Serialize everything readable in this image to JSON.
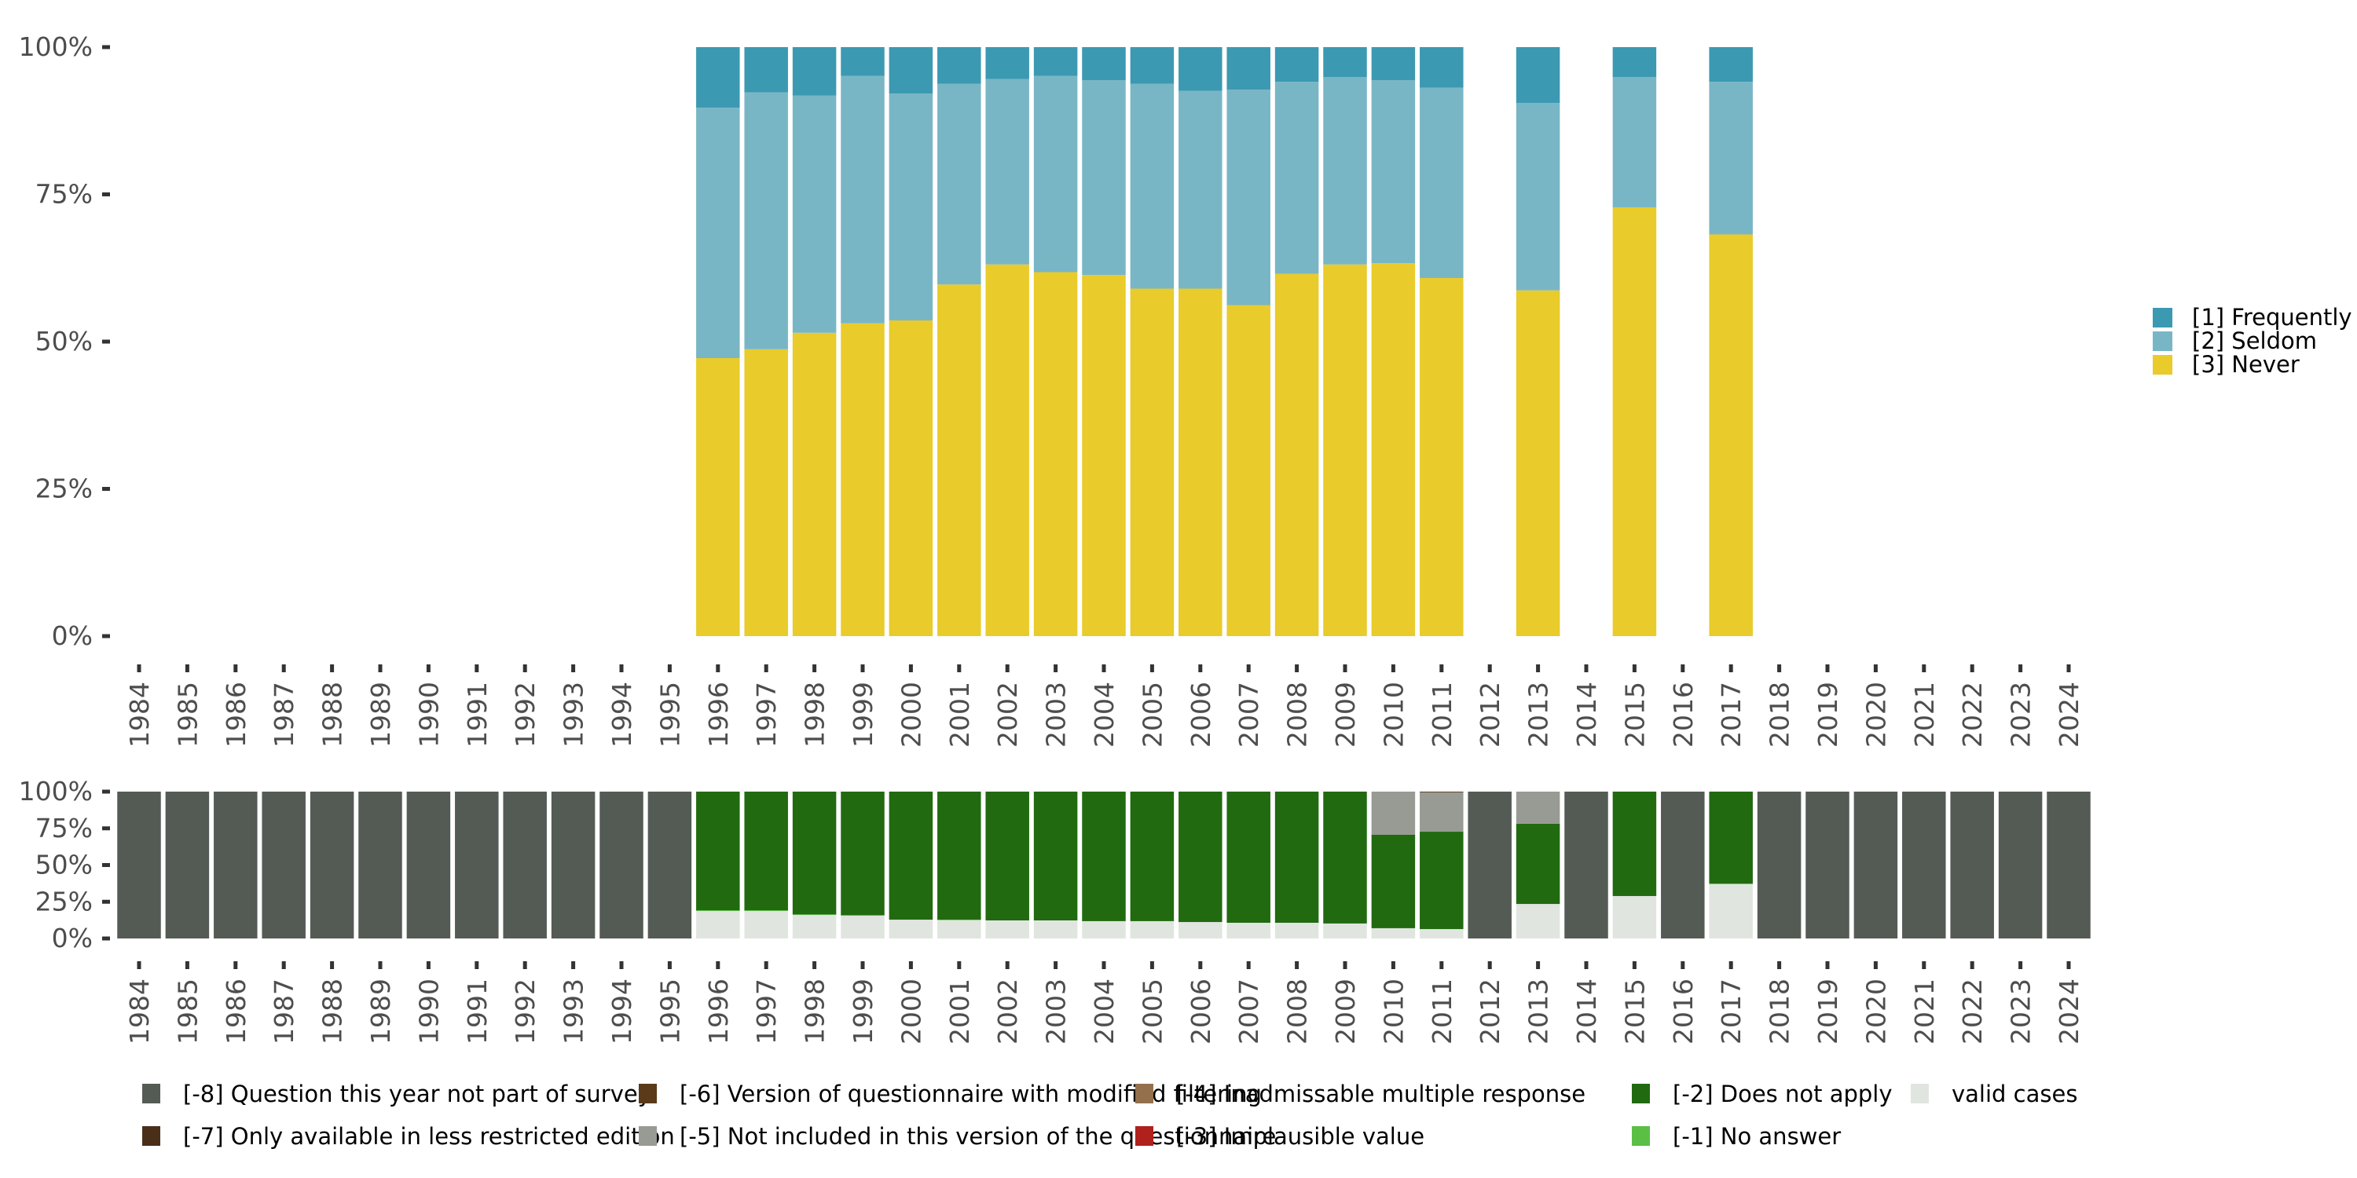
{
  "chart_data": [
    {
      "type": "bar",
      "stacked": true,
      "normalized": true,
      "title": "",
      "xlabel": "",
      "ylabel": "",
      "ylim": [
        0,
        1
      ],
      "yticks": [
        "0%",
        "25%",
        "50%",
        "75%",
        "100%"
      ],
      "categories": [
        "1984",
        "1985",
        "1986",
        "1987",
        "1988",
        "1989",
        "1990",
        "1991",
        "1992",
        "1993",
        "1994",
        "1995",
        "1996",
        "1997",
        "1998",
        "1999",
        "2000",
        "2001",
        "2002",
        "2003",
        "2004",
        "2005",
        "2006",
        "2007",
        "2008",
        "2009",
        "2010",
        "2011",
        "2012",
        "2013",
        "2014",
        "2015",
        "2016",
        "2017",
        "2018",
        "2019",
        "2020",
        "2021",
        "2022",
        "2023",
        "2024"
      ],
      "legend_position": "right",
      "series": [
        {
          "name": "[3] Never",
          "color": "#e9cb2b",
          "values": [
            null,
            null,
            null,
            null,
            null,
            null,
            null,
            null,
            null,
            null,
            null,
            null,
            47.2,
            48.7,
            51.5,
            53.1,
            53.6,
            59.7,
            63.1,
            61.8,
            61.3,
            59.0,
            59.0,
            56.2,
            61.5,
            63.1,
            63.3,
            60.8,
            null,
            58.7,
            null,
            72.8,
            null,
            68.2,
            null,
            null,
            null,
            null,
            null,
            null,
            null
          ]
        },
        {
          "name": "[2] Seldom",
          "color": "#79b6c5",
          "values": [
            null,
            null,
            null,
            null,
            null,
            null,
            null,
            null,
            null,
            null,
            null,
            null,
            42.5,
            43.6,
            40.3,
            42.0,
            38.5,
            34.1,
            31.5,
            33.3,
            33.1,
            34.8,
            33.6,
            36.6,
            32.6,
            31.8,
            31.1,
            32.3,
            null,
            31.8,
            null,
            22.1,
            null,
            25.9,
            null,
            null,
            null,
            null,
            null,
            null,
            null
          ]
        },
        {
          "name": "[1] Frequently",
          "color": "#3c99b2",
          "values": [
            null,
            null,
            null,
            null,
            null,
            null,
            null,
            null,
            null,
            null,
            null,
            null,
            10.3,
            7.7,
            8.2,
            4.9,
            7.9,
            6.2,
            5.4,
            4.9,
            5.6,
            6.2,
            7.4,
            7.2,
            5.9,
            5.1,
            5.6,
            6.9,
            null,
            9.5,
            null,
            5.1,
            null,
            5.9,
            null,
            null,
            null,
            null,
            null,
            null,
            null
          ]
        }
      ],
      "legend": [
        {
          "label": "[1] Frequently",
          "color": "#3c99b2"
        },
        {
          "label": "[2] Seldom",
          "color": "#79b6c5"
        },
        {
          "label": "[3] Never",
          "color": "#e9cb2b"
        }
      ]
    },
    {
      "type": "bar",
      "stacked": true,
      "normalized": true,
      "title": "",
      "xlabel": "",
      "ylabel": "",
      "ylim": [
        0,
        1
      ],
      "yticks": [
        "0%",
        "25%",
        "50%",
        "75%",
        "100%"
      ],
      "categories": [
        "1984",
        "1985",
        "1986",
        "1987",
        "1988",
        "1989",
        "1990",
        "1991",
        "1992",
        "1993",
        "1994",
        "1995",
        "1996",
        "1997",
        "1998",
        "1999",
        "2000",
        "2001",
        "2002",
        "2003",
        "2004",
        "2005",
        "2006",
        "2007",
        "2008",
        "2009",
        "2010",
        "2011",
        "2012",
        "2013",
        "2014",
        "2015",
        "2016",
        "2017",
        "2018",
        "2019",
        "2020",
        "2021",
        "2022",
        "2023",
        "2024"
      ],
      "legend_position": "bottom",
      "series": [
        {
          "name": "valid cases",
          "color": "#e0e5e0",
          "values": [
            0,
            0,
            0,
            0,
            0,
            0,
            0,
            0,
            0,
            0,
            0,
            0,
            18.7,
            18.7,
            16.0,
            15.5,
            12.8,
            12.5,
            12.3,
            12.3,
            11.8,
            11.8,
            11.2,
            10.7,
            10.7,
            10.2,
            7.0,
            6.4,
            0,
            23.5,
            0,
            28.9,
            0,
            37.0,
            0,
            0,
            0,
            0,
            0,
            0,
            0
          ]
        },
        {
          "name": "[-1] No answer",
          "color": "#5bbf45",
          "values": [
            0,
            0,
            0,
            0,
            0,
            0,
            0,
            0,
            0,
            0,
            0,
            0,
            0.5,
            0.5,
            0.4,
            0.4,
            0,
            0.3,
            0,
            0,
            0,
            0,
            0,
            0,
            0,
            0,
            0,
            0,
            0,
            0,
            0,
            0,
            0,
            0.4,
            0,
            0,
            0,
            0,
            0,
            0,
            0
          ]
        },
        {
          "name": "[-2] Does not apply",
          "color": "#216a10",
          "values": [
            0,
            0,
            0,
            0,
            0,
            0,
            0,
            0,
            0,
            0,
            0,
            0,
            80.8,
            80.8,
            83.6,
            84.1,
            87.2,
            87.2,
            87.7,
            87.7,
            88.2,
            88.2,
            88.8,
            89.3,
            89.3,
            89.8,
            63.6,
            66.3,
            0,
            54.6,
            0,
            71.1,
            0,
            62.6,
            0,
            0,
            0,
            0,
            0,
            0,
            0
          ]
        },
        {
          "name": "[-5] Not included in this version of the questionnaire",
          "color": "#989b94",
          "values": [
            0,
            0,
            0,
            0,
            0,
            0,
            0,
            0,
            0,
            0,
            0,
            0,
            0,
            0,
            0,
            0,
            0,
            0,
            0,
            0,
            0,
            0,
            0,
            0,
            0,
            0,
            29.4,
            26.8,
            0,
            21.9,
            0,
            0,
            0,
            0,
            0,
            0,
            0,
            0,
            0,
            0,
            0
          ]
        },
        {
          "name": "[-6] Version of questionnaire with modified filtering",
          "color": "#5b3a19",
          "values": [
            0,
            0,
            0,
            0,
            0,
            0,
            0,
            0,
            0,
            0,
            0,
            0,
            0,
            0,
            0,
            0,
            0,
            0,
            0,
            0,
            0,
            0,
            0,
            0,
            0,
            0,
            0,
            0.5,
            0,
            0,
            0,
            0,
            0,
            0,
            0,
            0,
            0,
            0,
            0,
            0,
            0
          ]
        },
        {
          "name": "[-8] Question this year not part of survey",
          "color": "#545b55",
          "values": [
            100,
            100,
            100,
            100,
            100,
            100,
            100,
            100,
            100,
            100,
            100,
            100,
            0,
            0,
            0,
            0,
            0,
            0,
            0,
            0,
            0,
            0,
            0,
            0,
            0,
            0,
            0,
            0,
            100,
            0,
            100,
            0,
            100,
            0,
            100,
            100,
            100,
            100,
            100,
            100,
            100
          ]
        }
      ],
      "legend": [
        {
          "label": "[-8] Question this year not part of survey",
          "color": "#545b55"
        },
        {
          "label": "[-7] Only available in less restricted edition",
          "color": "#4a2f18"
        },
        {
          "label": "[-6] Version of questionnaire with modified filtering",
          "color": "#5b3a19"
        },
        {
          "label": "[-5] Not included in this version of the questionnaire",
          "color": "#989b94"
        },
        {
          "label": "[-4] Inadmissable multiple response",
          "color": "#94704d"
        },
        {
          "label": "[-3] Implausible value",
          "color": "#b0201d"
        },
        {
          "label": "[-2] Does not apply",
          "color": "#216a10"
        },
        {
          "label": "[-1] No answer",
          "color": "#5bbf45"
        },
        {
          "label": "valid cases",
          "color": "#e0e5e0"
        }
      ]
    }
  ]
}
